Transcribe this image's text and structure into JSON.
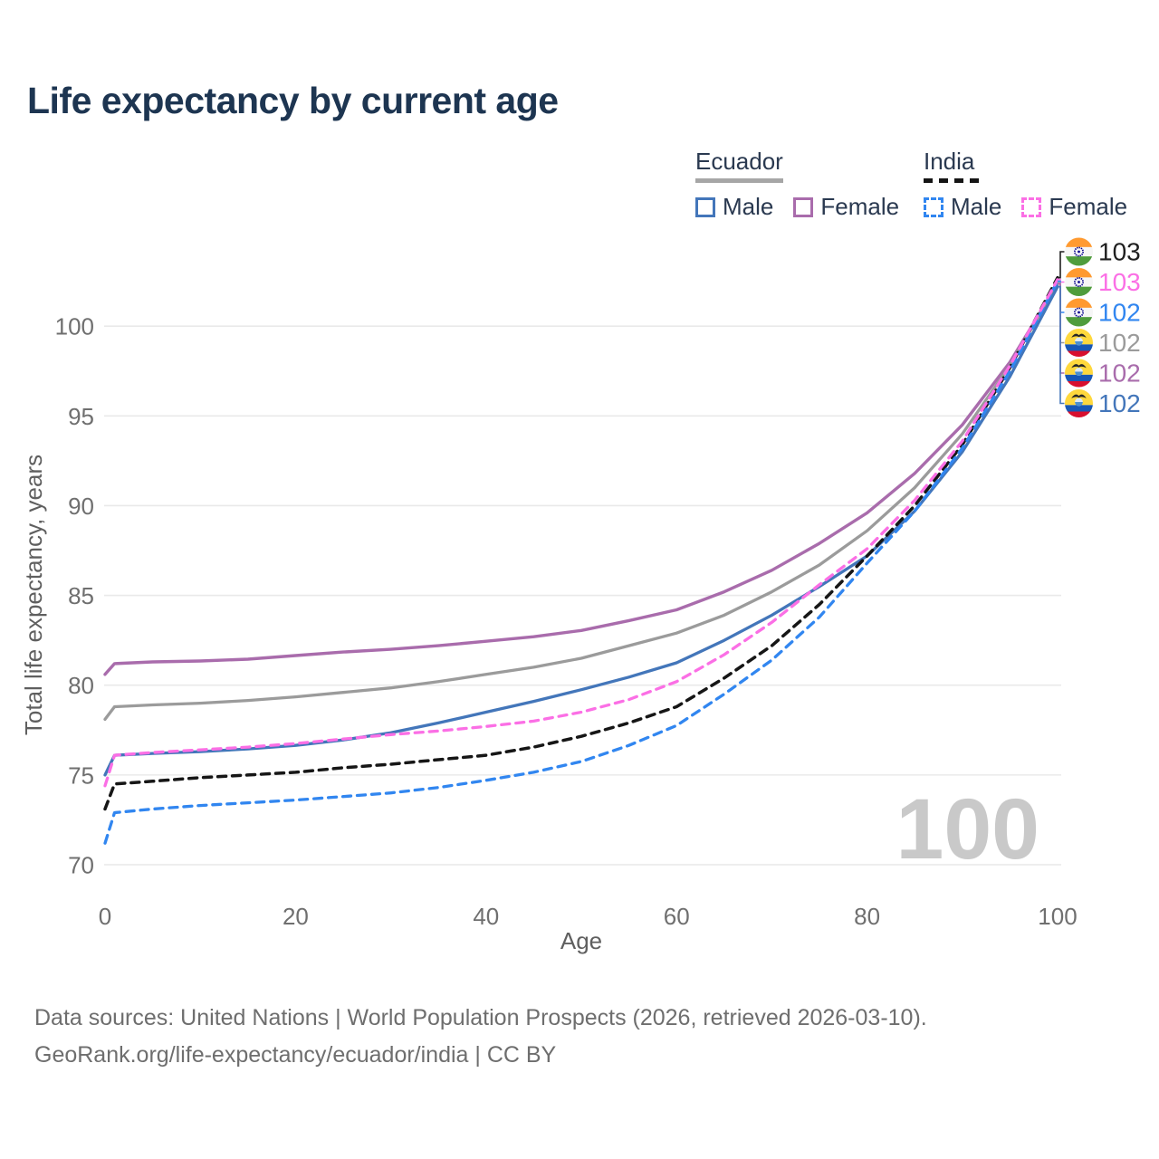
{
  "title": "Life expectancy by current age",
  "watermark": "100",
  "legend": {
    "groups": [
      {
        "label": "Ecuador",
        "style": "solid",
        "items": [
          {
            "label": "Male",
            "color": "#4376ba"
          },
          {
            "label": "Female",
            "color": "#a96cac"
          }
        ]
      },
      {
        "label": "India",
        "style": "dashed",
        "items": [
          {
            "label": "Male",
            "color": "#3186f0"
          },
          {
            "label": "Female",
            "color": "#fb6fe5"
          }
        ]
      }
    ]
  },
  "end_labels": [
    {
      "series": "India",
      "flag": "india",
      "value": "103",
      "color": "#1f1f1f"
    },
    {
      "series": "India Female",
      "flag": "india",
      "value": "103",
      "color": "#fb6fe5"
    },
    {
      "series": "India Male",
      "flag": "india",
      "value": "102",
      "color": "#3186f0"
    },
    {
      "series": "Ecuador",
      "flag": "ecuador",
      "value": "102",
      "color": "#9b9b9b"
    },
    {
      "series": "Ecuador Female",
      "flag": "ecuador",
      "value": "102",
      "color": "#a96cac"
    },
    {
      "series": "Ecuador Male",
      "flag": "ecuador",
      "value": "102",
      "color": "#4376ba"
    }
  ],
  "footer": {
    "line1": "Data sources: United Nations | World Population Prospects (2026, retrieved 2026-03-10).",
    "line2": "GeoRank.org/life-expectancy/ecuador/india | CC BY"
  },
  "chart_data": {
    "type": "line",
    "title": "Life expectancy by current age",
    "xlabel": "Age",
    "ylabel": "Total life expectancy, years",
    "xlim": [
      0,
      100
    ],
    "ylim": [
      70,
      100
    ],
    "x_ticks": [
      "0",
      "20",
      "40",
      "60",
      "80",
      "100"
    ],
    "x_tick_values": [
      0,
      20,
      40,
      60,
      80,
      100
    ],
    "y_ticks": [
      "70",
      "75",
      "80",
      "85",
      "90",
      "95",
      "100"
    ],
    "y_tick_values": [
      70,
      75,
      80,
      85,
      90,
      95,
      100
    ],
    "grid": "horizontal",
    "legend_position": "top-right",
    "ages": [
      0,
      1,
      5,
      10,
      15,
      20,
      25,
      30,
      35,
      40,
      45,
      50,
      55,
      60,
      65,
      70,
      75,
      80,
      85,
      90,
      95,
      100
    ],
    "series": [
      {
        "name": "Ecuador Female",
        "country": "Ecuador",
        "sex": "Female",
        "color": "#a96cac",
        "dash": false,
        "width": 3.4,
        "values": [
          80.6,
          81.2,
          81.3,
          81.35,
          81.45,
          81.65,
          81.85,
          82.0,
          82.2,
          82.45,
          82.7,
          83.05,
          83.6,
          84.2,
          85.2,
          86.4,
          87.9,
          89.6,
          91.8,
          94.5,
          98.0,
          102.35
        ]
      },
      {
        "name": "Ecuador",
        "country": "Ecuador",
        "sex": "Both",
        "color": "#9b9b9b",
        "dash": false,
        "width": 3.3,
        "values": [
          78.1,
          78.8,
          78.9,
          79.0,
          79.15,
          79.35,
          79.6,
          79.85,
          80.2,
          80.6,
          81.0,
          81.5,
          82.2,
          82.9,
          83.9,
          85.2,
          86.7,
          88.6,
          91.0,
          94.0,
          97.8,
          102.4
        ]
      },
      {
        "name": "Ecuador Male",
        "country": "Ecuador",
        "sex": "Male",
        "color": "#4376ba",
        "dash": false,
        "width": 3.3,
        "values": [
          75.0,
          76.1,
          76.2,
          76.3,
          76.45,
          76.65,
          76.95,
          77.35,
          77.9,
          78.5,
          79.1,
          79.75,
          80.45,
          81.25,
          82.5,
          83.9,
          85.5,
          87.2,
          89.7,
          93.0,
          97.2,
          102.2
        ]
      },
      {
        "name": "India",
        "country": "India",
        "sex": "Both",
        "color": "#161616",
        "dash": true,
        "width": 3.5,
        "values": [
          73.1,
          74.5,
          74.65,
          74.85,
          75.0,
          75.15,
          75.4,
          75.6,
          75.85,
          76.1,
          76.55,
          77.15,
          77.9,
          78.8,
          80.4,
          82.2,
          84.5,
          87.2,
          90.0,
          93.4,
          97.7,
          102.7
        ]
      },
      {
        "name": "India Male",
        "country": "India",
        "sex": "Male",
        "color": "#3186f0",
        "dash": true,
        "width": 3.3,
        "values": [
          71.2,
          72.9,
          73.1,
          73.3,
          73.45,
          73.6,
          73.8,
          74.0,
          74.3,
          74.7,
          75.15,
          75.75,
          76.65,
          77.75,
          79.5,
          81.4,
          83.8,
          86.8,
          89.7,
          93.2,
          97.5,
          102.5
        ]
      },
      {
        "name": "India Female",
        "country": "India",
        "sex": "Female",
        "color": "#fb6fe5",
        "dash": true,
        "width": 3.3,
        "values": [
          74.4,
          76.1,
          76.25,
          76.4,
          76.55,
          76.75,
          77.0,
          77.25,
          77.45,
          77.7,
          78.0,
          78.5,
          79.2,
          80.2,
          81.7,
          83.5,
          85.6,
          87.6,
          90.3,
          93.6,
          97.8,
          102.6
        ]
      }
    ]
  }
}
